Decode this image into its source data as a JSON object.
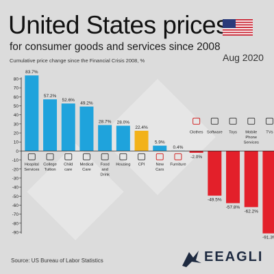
{
  "header": {
    "title": "United States prices",
    "subtitle": "for consumer goods and services since 2008",
    "note": "Cumulative price change since the Financial Crisis 2008, %",
    "date": "Aug 2020"
  },
  "footer": {
    "source": "Source: US Bureau of Labor Statistics",
    "brand": "EEAGLI"
  },
  "icons": [
    "us-flag-icon",
    "hospital-icon",
    "graduation-cap-icon",
    "stroller-icon",
    "medical-kit-icon",
    "food-basket-icon",
    "house-icon",
    "car-icon",
    "armchair-icon",
    "shirt-icon",
    "laptop-icon",
    "toy-truck-icon",
    "mobile-phone-icon",
    "tv-icon",
    "eagle-logo-icon"
  ],
  "colors": {
    "positive": "#1fa3dc",
    "cpi": "#f2b21a",
    "negative": "#e3202a",
    "background": "#dcdcdc"
  },
  "chart_data": {
    "type": "bar",
    "title": "United States prices",
    "ylim": [
      -90,
      80
    ],
    "yticks": [
      80,
      70,
      60,
      50,
      40,
      30,
      20,
      10,
      0,
      -10,
      -20,
      -30,
      -40,
      -50,
      -60,
      -70,
      -80,
      -90
    ],
    "grid": false,
    "categories": [
      "Hospital Services",
      "College Tuition",
      "Child-care",
      "Medical Care",
      "Food and Drink",
      "Housing",
      "CPI",
      "New Cars",
      "Furniture",
      "Clothes",
      "Software",
      "Toys",
      "Mobile Phone Services",
      "TVs"
    ],
    "category_labels": [
      [
        "Hospital",
        "Services"
      ],
      [
        "College",
        "Tuition"
      ],
      [
        "Child",
        "care"
      ],
      [
        "Medical",
        "Care"
      ],
      [
        "Food",
        "and",
        "Drink"
      ],
      [
        "Housing"
      ],
      [
        "CPI"
      ],
      [
        "New",
        "Cars"
      ],
      [
        "Furniture"
      ],
      [
        "Clothes"
      ],
      [
        "Software"
      ],
      [
        "Toys"
      ],
      [
        "Mobile",
        "Phone",
        "Services"
      ],
      [
        "TVs"
      ]
    ],
    "values": [
      83.7,
      57.2,
      52.6,
      49.2,
      28.7,
      28.0,
      22.4,
      5.9,
      0.4,
      -2.0,
      -49.5,
      -57.8,
      -62.2,
      -91.3
    ],
    "value_labels": [
      "83.7%",
      "57.2%",
      "52.6%",
      "49.2%",
      "28.7%",
      "28.0%",
      "22.4%",
      "5.9%",
      "0.4%",
      "-2.0%",
      "-49.5%",
      "-57.8%",
      "-62.2%",
      "-91.3%"
    ]
  }
}
